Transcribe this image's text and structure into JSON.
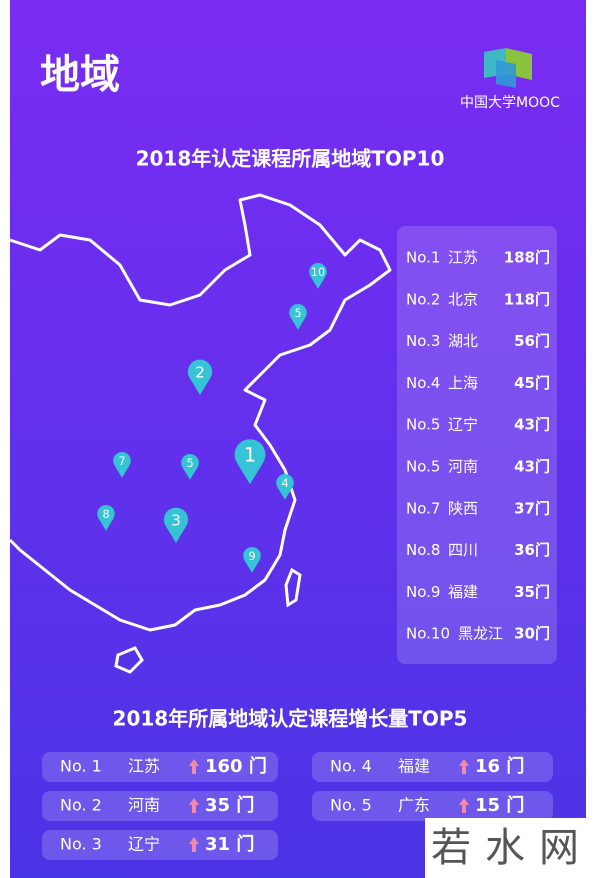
{
  "header": {
    "title": "地域",
    "logo_text": "中国大学MOOC"
  },
  "top10": {
    "title": "2018年认定课程所属地域TOP10",
    "rows": [
      {
        "rank": "No.1",
        "name": "江苏",
        "count": "188门"
      },
      {
        "rank": "No.2",
        "name": "北京",
        "count": "118门"
      },
      {
        "rank": "No.3",
        "name": "湖北",
        "count": "56门"
      },
      {
        "rank": "No.4",
        "name": "上海",
        "count": "45门"
      },
      {
        "rank": "No.5",
        "name": "辽宁",
        "count": "43门"
      },
      {
        "rank": "No.5",
        "name": "河南",
        "count": "43门"
      },
      {
        "rank": "No.7",
        "name": "陕西",
        "count": "37门"
      },
      {
        "rank": "No.8",
        "name": "四川",
        "count": "36门"
      },
      {
        "rank": "No.9",
        "name": "福建",
        "count": "35门"
      },
      {
        "rank": "No.10",
        "name": "黑龙江",
        "count": "30门"
      }
    ]
  },
  "map": {
    "pins": [
      "1",
      "2",
      "3",
      "4",
      "5",
      "5",
      "7",
      "8",
      "9",
      "10"
    ]
  },
  "top5": {
    "title": "2018年所属地域认定课程增长量TOP5",
    "rows": [
      {
        "rank": "No. 1",
        "name": "江苏",
        "count": "160 门"
      },
      {
        "rank": "No. 2",
        "name": "河南",
        "count": "35 门"
      },
      {
        "rank": "No. 3",
        "name": "辽宁",
        "count": "31 门"
      },
      {
        "rank": "No. 4",
        "name": "福建",
        "count": "16 门"
      },
      {
        "rank": "No. 5",
        "name": "广东",
        "count": "15 门"
      }
    ]
  },
  "watermark": "若水网"
}
